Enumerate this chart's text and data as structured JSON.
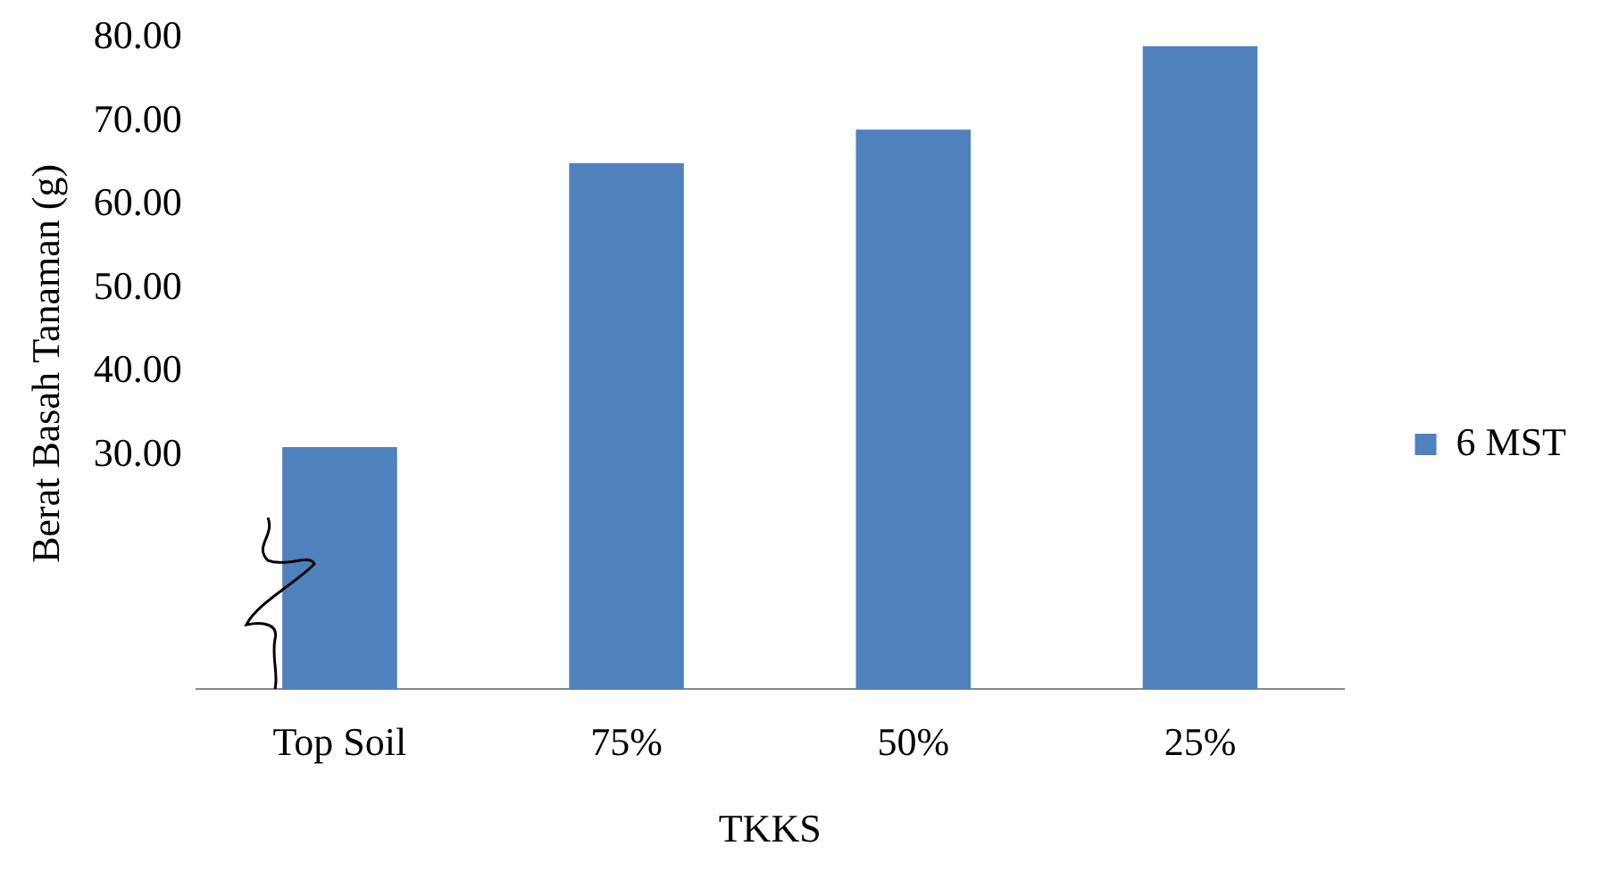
{
  "chart_data": {
    "type": "bar",
    "xlabel": "TKKS",
    "ylabel": "Berat Basah Tanaman (g)",
    "categories": [
      "Top Soil",
      "75%",
      "50%",
      "25%"
    ],
    "series": [
      {
        "name": "6 MST",
        "color": "#4f81bd",
        "values": [
          31,
          65,
          69,
          79
        ]
      }
    ],
    "ylim": [
      2,
      80
    ],
    "yticks": [
      {
        "value": 30,
        "label": "30.00"
      },
      {
        "value": 40,
        "label": "40.00"
      },
      {
        "value": 50,
        "label": "50.00"
      },
      {
        "value": 60,
        "label": "60.00"
      },
      {
        "value": 70,
        "label": "70.00"
      },
      {
        "value": 80,
        "label": "80.00"
      }
    ],
    "grid": false,
    "legend": "right"
  }
}
